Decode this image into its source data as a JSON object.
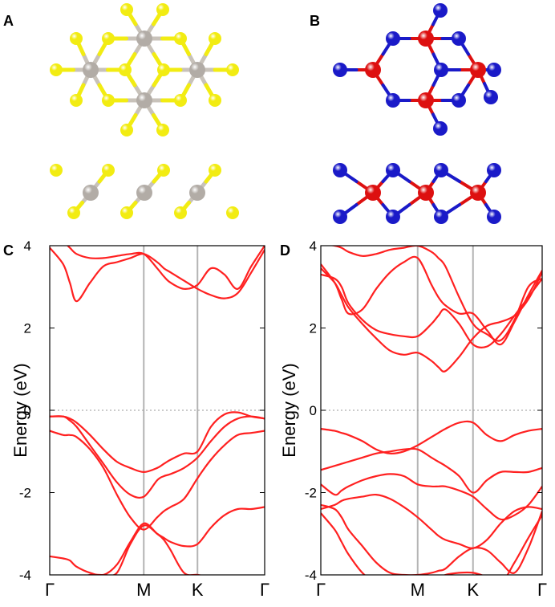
{
  "panels": {
    "A": "A",
    "B": "B",
    "C": "C",
    "D": "D"
  },
  "colors": {
    "band": "#ff2020",
    "kline": "#b4b4b4",
    "fermi": "#9a9a9a",
    "atom_gray": "#b2aca6",
    "atom_yellow": "#f2ec12",
    "atom_red": "#dd1010",
    "atom_blue": "#1a1ac8"
  },
  "chart_data": [
    {
      "panel": "C",
      "type": "line",
      "title": "",
      "xlabel": "",
      "ylabel": "Energy (eV)",
      "ylim": [
        -4,
        4
      ],
      "yticks": [
        4,
        2,
        0,
        -2,
        -4
      ],
      "ytick_labels": [
        "4",
        "2",
        "0",
        "-2",
        "-4"
      ],
      "x": [
        0,
        0.5,
        0.75,
        1.0,
        1.5,
        2.0,
        2.5,
        3.0,
        3.5,
        4.0,
        4.25,
        4.5,
        5.0,
        5.5,
        6.0,
        6.5,
        7.0,
        7.5,
        8.0
      ],
      "kpoints": [
        {
          "label": "Γ",
          "x": 0
        },
        {
          "label": "M",
          "x": 3.5
        },
        {
          "label": "K",
          "x": 5.5
        },
        {
          "label": "Γ",
          "x": 8.0
        }
      ],
      "fermi_level": 0,
      "series": [
        {
          "values": [
            -0.15,
            -0.15,
            -0.2,
            -0.3,
            -0.6,
            -0.95,
            -1.25,
            -1.4,
            -1.5,
            -1.4,
            -1.3,
            -1.2,
            -1.05,
            -1.0,
            -0.4,
            -0.1,
            -0.05,
            -0.15,
            -0.2
          ]
        },
        {
          "values": [
            -0.15,
            -0.15,
            -0.25,
            -0.4,
            -0.85,
            -1.3,
            -1.75,
            -2.05,
            -2.1,
            -1.7,
            -1.6,
            -1.55,
            -1.4,
            -1.15,
            -0.75,
            -0.4,
            -0.2,
            -0.15,
            -0.2
          ]
        },
        {
          "values": [
            -0.5,
            -0.6,
            -0.6,
            -0.65,
            -0.95,
            -1.4,
            -2.05,
            -2.6,
            -2.9,
            -2.6,
            -2.45,
            -2.35,
            -2.15,
            -1.65,
            -1.2,
            -0.85,
            -0.6,
            -0.55,
            -0.5
          ]
        },
        {
          "values": [
            -3.55,
            -3.6,
            -3.65,
            -3.8,
            -3.95,
            -4.0,
            -3.75,
            -3.2,
            -2.75,
            -3.0,
            -3.1,
            -3.2,
            -3.3,
            -3.25,
            -2.85,
            -2.55,
            -2.4,
            -2.4,
            -2.35
          ]
        },
        {
          "values": [
            -4.3,
            -4.3,
            -4.2,
            -4.1,
            -4.0,
            -4.0,
            -3.95,
            -3.25,
            -2.8,
            -3.0,
            -3.15,
            -3.4,
            -3.95,
            -4.0,
            -4.05,
            -4.1,
            -4.15,
            -4.2,
            -4.3
          ]
        },
        {
          "values": [
            3.95,
            3.55,
            3.1,
            2.65,
            3.1,
            3.5,
            3.6,
            3.7,
            3.8,
            3.6,
            3.45,
            3.35,
            3.15,
            2.95,
            2.8,
            2.72,
            2.85,
            3.35,
            3.9
          ]
        },
        {
          "values": [
            4.3,
            4.1,
            3.95,
            3.8,
            3.7,
            3.7,
            3.75,
            3.8,
            3.8,
            3.45,
            3.25,
            3.1,
            2.95,
            3.05,
            3.45,
            3.3,
            2.95,
            3.5,
            4.0
          ]
        }
      ]
    },
    {
      "panel": "D",
      "type": "line",
      "title": "",
      "xlabel": "",
      "ylabel": "Energy (eV)",
      "ylim": [
        -4,
        4
      ],
      "yticks": [
        4,
        2,
        0,
        -2,
        -4
      ],
      "ytick_labels": [
        "4",
        "2",
        "0",
        "-2",
        "-4"
      ],
      "x": [
        0,
        0.5,
        0.75,
        1.0,
        1.5,
        2.0,
        2.5,
        3.0,
        3.5,
        4.0,
        4.25,
        4.5,
        5.0,
        5.5,
        6.0,
        6.5,
        7.0,
        7.5,
        8.0
      ],
      "kpoints": [
        {
          "label": "Γ",
          "x": 0
        },
        {
          "label": "M",
          "x": 3.5
        },
        {
          "label": "K",
          "x": 5.5
        },
        {
          "label": "Γ",
          "x": 8.0
        }
      ],
      "fermi_level": 0,
      "series": [
        {
          "values": [
            -0.45,
            -0.5,
            -0.55,
            -0.6,
            -0.75,
            -0.95,
            -1.05,
            -1.0,
            -0.85,
            -0.65,
            -0.55,
            -0.45,
            -0.3,
            -0.3,
            -0.6,
            -0.75,
            -0.6,
            -0.5,
            -0.45
          ]
        },
        {
          "values": [
            -1.45,
            -1.35,
            -1.3,
            -1.25,
            -1.15,
            -1.05,
            -1.0,
            -0.95,
            -0.95,
            -1.15,
            -1.25,
            -1.35,
            -1.6,
            -2.0,
            -1.7,
            -1.5,
            -1.5,
            -1.5,
            -1.4
          ]
        },
        {
          "values": [
            -1.8,
            -2.05,
            -1.95,
            -1.85,
            -1.7,
            -1.6,
            -1.55,
            -1.6,
            -1.8,
            -1.85,
            -1.85,
            -1.85,
            -1.95,
            -2.1,
            -2.4,
            -2.65,
            -2.55,
            -2.3,
            -1.85
          ]
        },
        {
          "values": [
            -2.4,
            -2.3,
            -2.2,
            -2.15,
            -2.1,
            -2.05,
            -2.15,
            -2.35,
            -2.6,
            -2.9,
            -3.05,
            -3.15,
            -3.25,
            -3.35,
            -3.15,
            -2.75,
            -2.45,
            -2.35,
            -2.4
          ]
        },
        {
          "values": [
            -2.3,
            -2.4,
            -2.6,
            -2.9,
            -3.3,
            -3.7,
            -3.95,
            -4.0,
            -4.0,
            -3.95,
            -3.9,
            -3.85,
            -3.55,
            -3.35,
            -3.4,
            -3.7,
            -3.95,
            -3.35,
            -2.45
          ]
        },
        {
          "values": [
            -2.5,
            -2.9,
            -3.2,
            -3.5,
            -3.95,
            -4.2,
            -4.3,
            -4.3,
            -4.3,
            -4.2,
            -4.1,
            -4.0,
            -3.95,
            -3.95,
            -4.05,
            -4.2,
            -3.7,
            -3.1,
            -2.55
          ]
        },
        {
          "values": [
            3.45,
            3.1,
            2.8,
            2.5,
            2.1,
            1.75,
            1.45,
            1.35,
            1.4,
            1.2,
            1.05,
            0.95,
            1.3,
            1.75,
            2.05,
            2.15,
            2.3,
            2.7,
            3.35
          ]
        },
        {
          "values": [
            3.3,
            3.2,
            3.0,
            2.6,
            2.2,
            1.95,
            1.85,
            1.8,
            1.8,
            2.1,
            2.3,
            2.45,
            2.1,
            1.6,
            1.55,
            1.85,
            2.3,
            2.75,
            3.2
          ]
        },
        {
          "values": [
            3.55,
            3.1,
            2.7,
            2.35,
            2.45,
            2.95,
            3.35,
            3.6,
            3.7,
            3.05,
            2.75,
            2.55,
            2.35,
            2.35,
            1.95,
            1.6,
            2.15,
            2.8,
            3.4
          ]
        },
        {
          "values": [
            4.05,
            4.0,
            3.95,
            3.85,
            3.75,
            3.8,
            3.9,
            3.95,
            4.0,
            3.85,
            3.7,
            3.5,
            2.75,
            2.1,
            1.85,
            1.7,
            2.2,
            3.0,
            3.2
          ]
        }
      ]
    }
  ]
}
